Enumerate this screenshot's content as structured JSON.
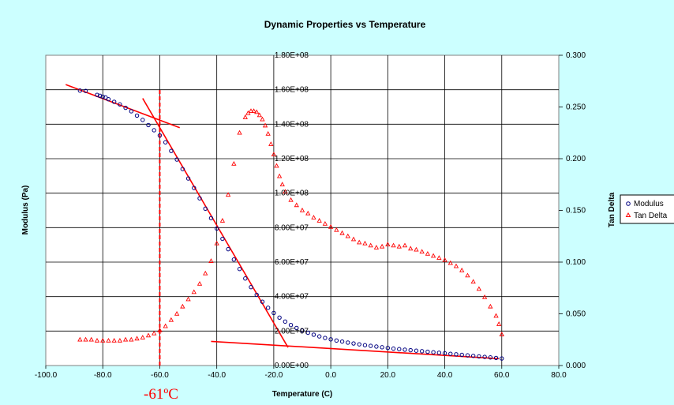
{
  "chart_data": {
    "type": "scatter",
    "title": "Dynamic Properties vs Temperature",
    "xlabel": "Temperature (C)",
    "ylabel": "Modulus (Pa)",
    "y2label": "Tan Delta",
    "xlim": [
      -100,
      80
    ],
    "ylim": [
      0,
      180000000
    ],
    "y2lim": [
      0,
      0.3
    ],
    "x_ticks": [
      "-100.0",
      "-80.0",
      "-60.0",
      "-40.0",
      "-20.0",
      "0.0",
      "20.0",
      "40.0",
      "60.0",
      "80.0"
    ],
    "y_ticks": [
      "0.00E+00",
      "2.00E+07",
      "4.00E+07",
      "6.00E+07",
      "8.00E+07",
      "1.00E+08",
      "1.20E+08",
      "1.40E+08",
      "1.60E+08",
      "1.80E+08"
    ],
    "y2_ticks": [
      "0.000",
      "0.050",
      "0.100",
      "0.150",
      "0.200",
      "0.250",
      "0.300"
    ],
    "grid": true,
    "legend_position": "right",
    "series": [
      {
        "name": "Modulus",
        "axis": "left",
        "marker": "circle",
        "color": "#000080",
        "x": [
          -88,
          -86,
          -82,
          -81,
          -80,
          -79,
          -78,
          -76,
          -74,
          -72,
          -70,
          -68,
          -66,
          -64,
          -62,
          -60,
          -58,
          -56,
          -54,
          -52,
          -50,
          -48,
          -46,
          -44,
          -42,
          -40,
          -38,
          -36,
          -34,
          -32,
          -30,
          -28,
          -26,
          -24,
          -22,
          -20,
          -18,
          -16,
          -14,
          -12,
          -10,
          -8,
          -6,
          -4,
          -2,
          0,
          2,
          4,
          6,
          8,
          10,
          12,
          14,
          16,
          18,
          20,
          22,
          24,
          26,
          28,
          30,
          32,
          34,
          36,
          38,
          40,
          42,
          44,
          46,
          48,
          50,
          52,
          54,
          56,
          58,
          60
        ],
        "y": [
          159500000,
          159300000,
          157000000,
          156500000,
          156000000,
          155500000,
          154500000,
          153000000,
          151500000,
          149500000,
          147500000,
          145000000,
          142500000,
          139500000,
          136500000,
          133500000,
          129500000,
          124500000,
          119500000,
          114000000,
          108500000,
          103000000,
          97000000,
          91000000,
          85500000,
          79500000,
          73500000,
          67500000,
          61500000,
          56000000,
          50500000,
          45500000,
          41000000,
          37000000,
          33500000,
          30500000,
          27800000,
          25500000,
          23500000,
          21800000,
          20300000,
          19000000,
          17900000,
          16900000,
          16000000,
          15200000,
          14500000,
          13900000,
          13300000,
          12800000,
          12300000,
          11800000,
          11400000,
          11000000,
          10600000,
          10200000,
          9800000,
          9500000,
          9200000,
          8900000,
          8600000,
          8300000,
          8000000,
          7700000,
          7400000,
          7100000,
          6800000,
          6500000,
          6200000,
          5900000,
          5600000,
          5300000,
          5000000,
          4700000,
          4400000,
          4100000
        ]
      },
      {
        "name": "Tan Delta",
        "axis": "right",
        "marker": "triangle",
        "color": "#ff0000",
        "x": [
          -88,
          -86,
          -84,
          -82,
          -80,
          -78,
          -76,
          -74,
          -72,
          -70,
          -68,
          -66,
          -64,
          -62,
          -60,
          -58,
          -56,
          -54,
          -52,
          -50,
          -48,
          -46,
          -44,
          -42,
          -40,
          -38,
          -36,
          -34,
          -32,
          -30,
          -29,
          -28,
          -27,
          -26,
          -25,
          -24,
          -23,
          -22,
          -21,
          -20,
          -19,
          -18,
          -17,
          -16,
          -14,
          -12,
          -10,
          -8,
          -6,
          -4,
          -2,
          0,
          2,
          4,
          6,
          8,
          10,
          12,
          14,
          16,
          18,
          20,
          22,
          24,
          26,
          28,
          30,
          32,
          34,
          36,
          38,
          40,
          42,
          44,
          46,
          48,
          50,
          52,
          54,
          56,
          58,
          59,
          60
        ],
        "y": [
          0.025,
          0.025,
          0.025,
          0.024,
          0.024,
          0.024,
          0.024,
          0.024,
          0.025,
          0.025,
          0.026,
          0.027,
          0.029,
          0.031,
          0.034,
          0.038,
          0.044,
          0.05,
          0.057,
          0.064,
          0.071,
          0.079,
          0.089,
          0.101,
          0.118,
          0.14,
          0.165,
          0.195,
          0.225,
          0.24,
          0.244,
          0.246,
          0.246,
          0.245,
          0.242,
          0.238,
          0.232,
          0.224,
          0.214,
          0.204,
          0.193,
          0.183,
          0.175,
          0.168,
          0.16,
          0.155,
          0.15,
          0.147,
          0.143,
          0.14,
          0.137,
          0.134,
          0.131,
          0.128,
          0.125,
          0.122,
          0.119,
          0.118,
          0.116,
          0.114,
          0.115,
          0.117,
          0.116,
          0.115,
          0.116,
          0.113,
          0.112,
          0.11,
          0.108,
          0.106,
          0.104,
          0.102,
          0.099,
          0.096,
          0.092,
          0.087,
          0.081,
          0.074,
          0.066,
          0.057,
          0.048,
          0.04,
          0.03
        ]
      }
    ],
    "annotation_lines": [
      {
        "axis": "left",
        "x": [
          -93,
          -53
        ],
        "y": [
          163000000,
          138000000
        ]
      },
      {
        "axis": "left",
        "x": [
          -66,
          -15
        ],
        "y": [
          155000000,
          10500000
        ]
      },
      {
        "axis": "left",
        "x": [
          -42,
          59
        ],
        "y": [
          14000000,
          4000000
        ]
      },
      {
        "axis": "left",
        "x": [
          -60,
          -60
        ],
        "y": [
          0,
          161000000
        ],
        "dashed": true
      }
    ],
    "annotations": [
      {
        "text": "-61ºC",
        "x": -60
      }
    ]
  }
}
